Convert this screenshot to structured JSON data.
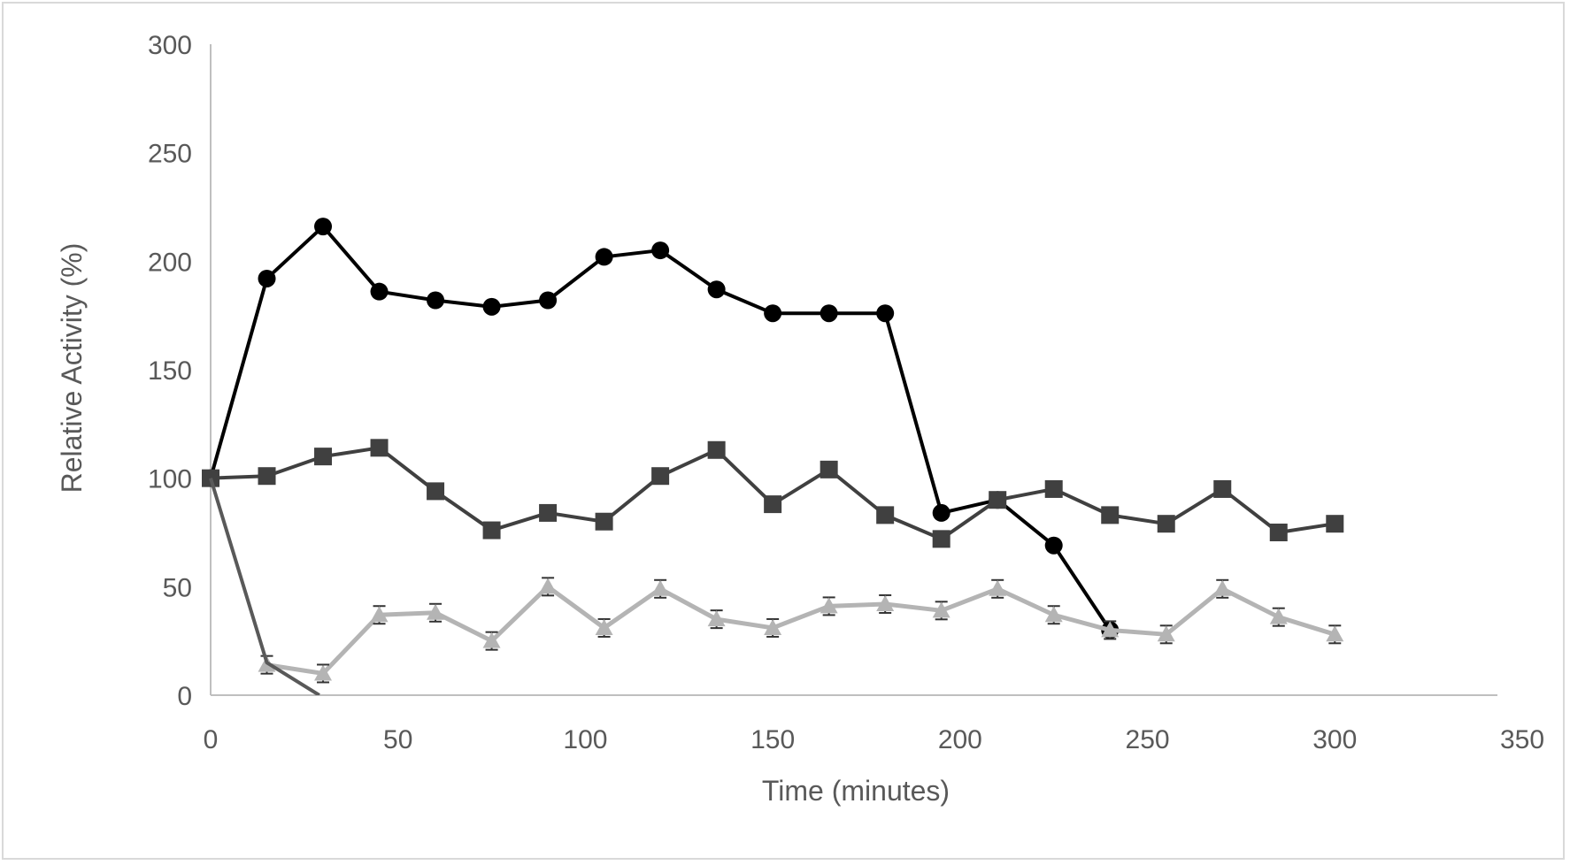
{
  "chart_data": {
    "type": "line",
    "title": "",
    "xlabel": "Time (minutes)",
    "ylabel": "Relative Activity (%)",
    "xlim": [
      0,
      350
    ],
    "ylim": [
      0,
      300
    ],
    "xticks": [
      0,
      50,
      100,
      150,
      200,
      250,
      300,
      350
    ],
    "yticks": [
      0,
      50,
      100,
      150,
      200,
      250,
      300
    ],
    "grid": false,
    "legend": "none",
    "series": [
      {
        "color": "#000000",
        "marker": "circle",
        "x": [
          0,
          15,
          30,
          45,
          60,
          75,
          90,
          105,
          120,
          135,
          150,
          165,
          180,
          195,
          210,
          225,
          240
        ],
        "y": [
          100,
          192,
          216,
          186,
          182,
          179,
          182,
          202,
          205,
          187,
          176,
          176,
          176,
          84,
          90,
          69,
          30
        ]
      },
      {
        "color": "#404040",
        "marker": "square",
        "x": [
          0,
          15,
          30,
          45,
          60,
          75,
          90,
          105,
          120,
          135,
          150,
          165,
          180,
          195,
          210,
          225,
          240,
          255,
          270,
          285,
          300
        ],
        "y": [
          100,
          101,
          110,
          114,
          94,
          76,
          84,
          80,
          101,
          113,
          88,
          104,
          83,
          72,
          90,
          95,
          83,
          79,
          95,
          75,
          79
        ]
      },
      {
        "color": "#b4b4b4",
        "marker": "triangle",
        "error_bars": true,
        "x": [
          15,
          30,
          45,
          60,
          75,
          90,
          105,
          120,
          135,
          150,
          165,
          180,
          195,
          210,
          225,
          240,
          255,
          270,
          285,
          300
        ],
        "y": [
          14,
          10,
          37,
          38,
          25,
          50,
          31,
          49,
          35,
          31,
          41,
          42,
          39,
          49,
          37,
          30,
          28,
          49,
          36,
          28
        ]
      },
      {
        "color": "#595959",
        "marker": "none",
        "x": [
          0,
          15,
          29
        ],
        "y": [
          100,
          15,
          0
        ]
      }
    ]
  }
}
